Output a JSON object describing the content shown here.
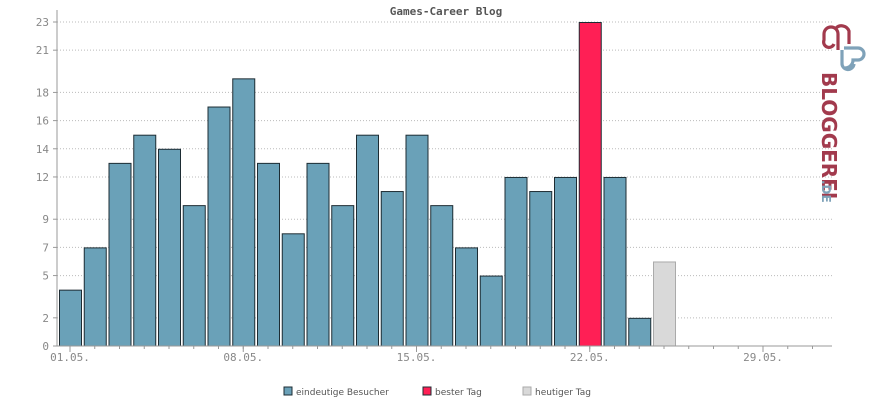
{
  "chart_data": {
    "type": "bar",
    "title": "Games-Career Blog",
    "ylim": [
      0,
      23
    ],
    "y_ticks": [
      0,
      2,
      5,
      7,
      9,
      12,
      14,
      16,
      18,
      21,
      23
    ],
    "x_ticks": [
      {
        "day": 1,
        "label": "01.05."
      },
      {
        "day": 8,
        "label": "08.05."
      },
      {
        "day": 15,
        "label": "15.05."
      },
      {
        "day": 22,
        "label": "22.05."
      },
      {
        "day": 29,
        "label": "29.05."
      }
    ],
    "days": [
      1,
      2,
      3,
      4,
      5,
      6,
      7,
      8,
      9,
      10,
      11,
      12,
      13,
      14,
      15,
      16,
      17,
      18,
      19,
      20,
      21,
      22,
      23,
      24,
      25,
      26,
      27,
      28,
      29,
      30,
      31
    ],
    "series": [
      {
        "name": "eindeutige Besucher",
        "color": "#6aa1b8",
        "values": [
          4,
          7,
          13,
          15,
          14,
          10,
          17,
          19,
          13,
          8,
          13,
          10,
          15,
          11,
          15,
          10,
          7,
          5,
          12,
          11,
          12,
          null,
          12,
          2,
          null,
          null,
          null,
          null,
          null,
          null,
          null
        ]
      },
      {
        "name": "bester Tag",
        "color": "#ff1f55",
        "values": [
          null,
          null,
          null,
          null,
          null,
          null,
          null,
          null,
          null,
          null,
          null,
          null,
          null,
          null,
          null,
          null,
          null,
          null,
          null,
          null,
          null,
          23,
          null,
          null,
          null,
          null,
          null,
          null,
          null,
          null,
          null
        ]
      },
      {
        "name": "heutiger Tag",
        "color": "#d9d9d9",
        "values": [
          null,
          null,
          null,
          null,
          null,
          null,
          null,
          null,
          null,
          null,
          null,
          null,
          null,
          null,
          null,
          null,
          null,
          null,
          null,
          null,
          null,
          null,
          null,
          null,
          6,
          null,
          null,
          null,
          null,
          null,
          null
        ]
      }
    ],
    "grid": true,
    "legend_position": "bottom-center"
  },
  "brand": {
    "name": "BLOGGEREI",
    "suffix": ".DE",
    "colors": {
      "dark": "#a23a4d",
      "light": "#7fa2b9"
    }
  }
}
